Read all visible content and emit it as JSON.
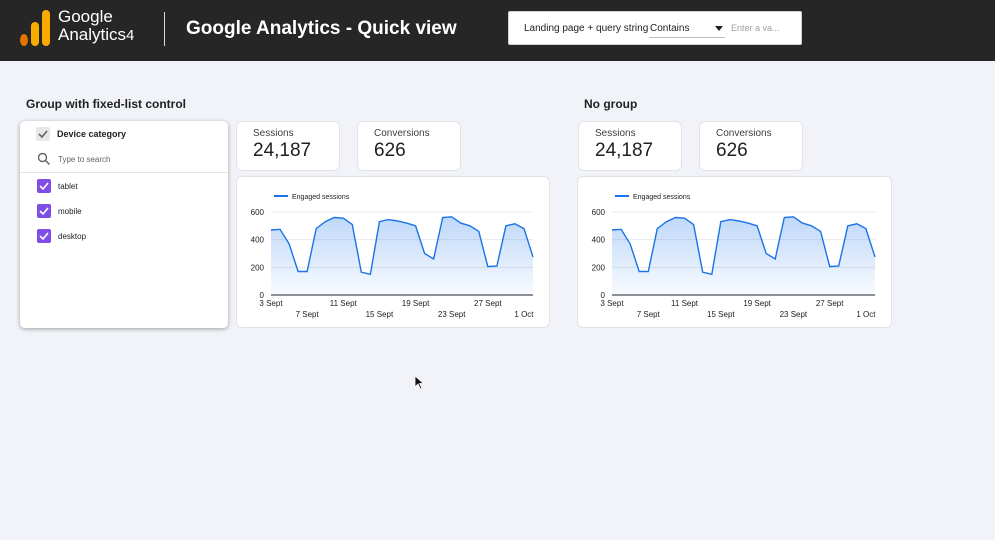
{
  "header": {
    "logo_line1": "Google",
    "logo_line2": "Analytics",
    "logo_version": "4",
    "title": "Google Analytics - Quick view"
  },
  "filter": {
    "dimension": "Landing page + query string",
    "operator": "Contains",
    "value_placeholder": "Enter a va..."
  },
  "left_section": {
    "title": "Group with fixed-list control",
    "control": {
      "title": "Device category",
      "search_placeholder": "Type to search",
      "options": [
        {
          "label": "tablet",
          "checked": true
        },
        {
          "label": "mobile",
          "checked": true
        },
        {
          "label": "desktop",
          "checked": true
        }
      ]
    },
    "sessions": {
      "label": "Sessions",
      "value": "24,187"
    },
    "conversions": {
      "label": "Conversions",
      "value": "626"
    }
  },
  "right_section": {
    "title": "No group",
    "sessions": {
      "label": "Sessions",
      "value": "24,187"
    },
    "conversions": {
      "label": "Conversions",
      "value": "626"
    }
  },
  "colors": {
    "header_bg": "#262626",
    "accent_line": "#1a73e8",
    "checkbox": "#7e4ee6",
    "logo_orange": "#f9ab00",
    "logo_dark_orange": "#e37400"
  },
  "chart_data": [
    {
      "type": "area",
      "series": [
        {
          "name": "Engaged sessions",
          "values": [
            470,
            475,
            370,
            170,
            170,
            480,
            530,
            560,
            555,
            510,
            165,
            150,
            530,
            545,
            535,
            520,
            500,
            300,
            260,
            560,
            565,
            520,
            500,
            460,
            205,
            210,
            500,
            515,
            480,
            275
          ]
        }
      ],
      "x": [
        "3 Sept",
        "4 Sept",
        "5 Sept",
        "6 Sept",
        "7 Sept",
        "8 Sept",
        "9 Sept",
        "10 Sept",
        "11 Sept",
        "12 Sept",
        "13 Sept",
        "14 Sept",
        "15 Sept",
        "16 Sept",
        "17 Sept",
        "18 Sept",
        "19 Sept",
        "20 Sept",
        "21 Sept",
        "22 Sept",
        "23 Sept",
        "24 Sept",
        "25 Sept",
        "26 Sept",
        "27 Sept",
        "28 Sept",
        "29 Sept",
        "30 Sept",
        "1 Oct",
        "2 Oct"
      ],
      "x_ticks_top": [
        "3 Sept",
        "11 Sept",
        "19 Sept",
        "27 Sept"
      ],
      "x_ticks_bottom": [
        "7 Sept",
        "15 Sept",
        "23 Sept",
        "1 Oct"
      ],
      "y_ticks": [
        "0",
        "200",
        "400",
        "600"
      ],
      "ylim": [
        0,
        600
      ],
      "grid": true,
      "legend": "top-left"
    },
    {
      "type": "area",
      "series": [
        {
          "name": "Engaged sessions",
          "values": [
            470,
            475,
            370,
            170,
            170,
            480,
            530,
            560,
            555,
            510,
            165,
            150,
            530,
            545,
            535,
            520,
            500,
            300,
            260,
            560,
            565,
            520,
            500,
            460,
            205,
            210,
            500,
            515,
            480,
            275
          ]
        }
      ],
      "x": [
        "3 Sept",
        "4 Sept",
        "5 Sept",
        "6 Sept",
        "7 Sept",
        "8 Sept",
        "9 Sept",
        "10 Sept",
        "11 Sept",
        "12 Sept",
        "13 Sept",
        "14 Sept",
        "15 Sept",
        "16 Sept",
        "17 Sept",
        "18 Sept",
        "19 Sept",
        "20 Sept",
        "21 Sept",
        "22 Sept",
        "23 Sept",
        "24 Sept",
        "25 Sept",
        "26 Sept",
        "27 Sept",
        "28 Sept",
        "29 Sept",
        "30 Sept",
        "1 Oct",
        "2 Oct"
      ],
      "x_ticks_top": [
        "3 Sept",
        "11 Sept",
        "19 Sept",
        "27 Sept"
      ],
      "x_ticks_bottom": [
        "7 Sept",
        "15 Sept",
        "23 Sept",
        "1 Oct"
      ],
      "y_ticks": [
        "0",
        "200",
        "400",
        "600"
      ],
      "ylim": [
        0,
        600
      ],
      "grid": true,
      "legend": "top-left"
    }
  ]
}
